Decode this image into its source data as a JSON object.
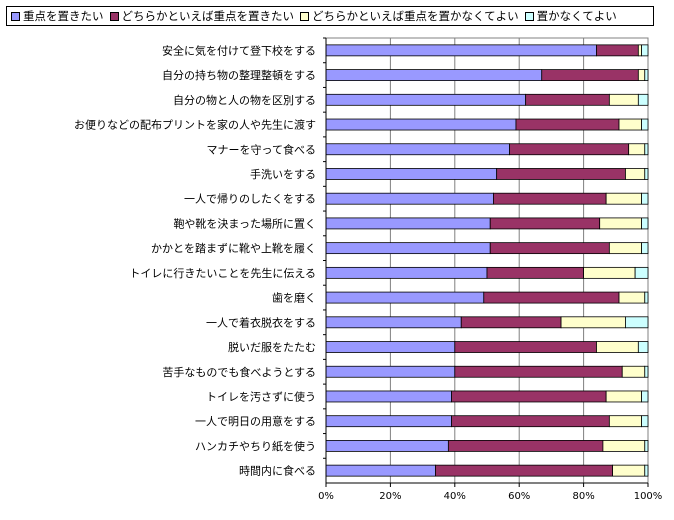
{
  "chart_data": {
    "type": "bar",
    "orientation": "horizontal-stacked-100",
    "legend_position": "top",
    "grid": true,
    "xlim": [
      0,
      100
    ],
    "x_tick_labels": [
      "0%",
      "20%",
      "40%",
      "60%",
      "80%",
      "100%"
    ],
    "x_ticks": [
      0,
      20,
      40,
      60,
      80,
      100
    ],
    "series": [
      {
        "name": "重点を置きたい",
        "color": "#9999ff"
      },
      {
        "name": "どちらかといえば重点を置きたい",
        "color": "#993366"
      },
      {
        "name": "どちらかといえば重点を置かなくてよい",
        "color": "#ffffcc"
      },
      {
        "name": "置かなくてよい",
        "color": "#ccffff"
      }
    ],
    "categories": [
      "安全に気を付けて登下校をする",
      "自分の持ち物の整理整頓をする",
      "自分の物と人の物を区別する",
      "お便りなどの配布プリントを家の人や先生に渡す",
      "マナーを守って食べる",
      "手洗いをする",
      "一人で帰りのしたくをする",
      "鞄や靴を決まった場所に置く",
      "かかとを踏まずに靴や上靴を履く",
      "トイレに行きたいことを先生に伝える",
      "歯を磨く",
      "一人で着衣脱衣をする",
      "脱いだ服をたたむ",
      "苦手なものでも食べようとする",
      "トイレを汚さずに使う",
      "一人で明日の用意をする",
      "ハンカチやちり紙を使う",
      "時間内に食べる"
    ],
    "values": [
      [
        84,
        13,
        1,
        2
      ],
      [
        67,
        30,
        2,
        1
      ],
      [
        62,
        26,
        9,
        3
      ],
      [
        59,
        32,
        7,
        2
      ],
      [
        57,
        37,
        5,
        1
      ],
      [
        53,
        40,
        6,
        1
      ],
      [
        52,
        35,
        11,
        2
      ],
      [
        51,
        34,
        13,
        2
      ],
      [
        51,
        37,
        10,
        2
      ],
      [
        50,
        30,
        16,
        4
      ],
      [
        49,
        42,
        8,
        1
      ],
      [
        42,
        31,
        20,
        7
      ],
      [
        40,
        44,
        13,
        3
      ],
      [
        40,
        52,
        7,
        1
      ],
      [
        39,
        48,
        11,
        2
      ],
      [
        39,
        49,
        10,
        2
      ],
      [
        38,
        48,
        13,
        1
      ],
      [
        34,
        55,
        10,
        1
      ]
    ]
  }
}
